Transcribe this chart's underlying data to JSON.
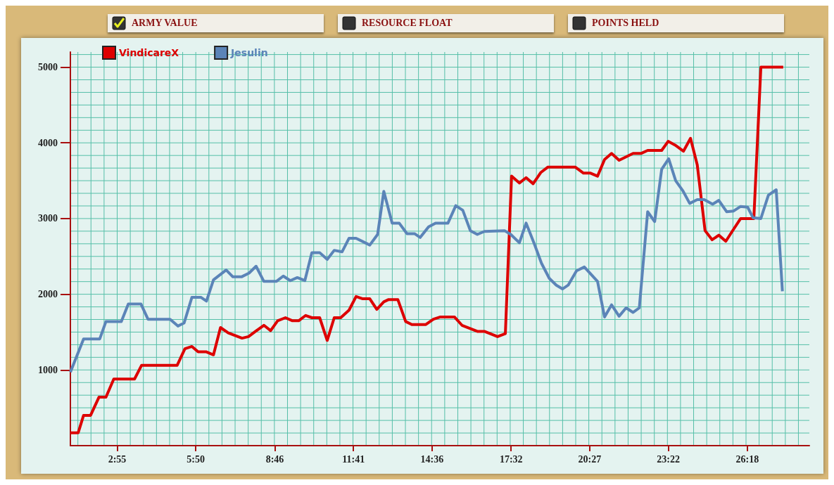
{
  "chart_data": {
    "type": "line",
    "title": "ARMY VALUE",
    "annotations": [
      "RESOURCE FLOAT",
      "POINTS HELD"
    ],
    "xlim": [
      1.18,
      28.6
    ],
    "xticks": [
      {
        "value": 2.9167,
        "label": "2:55"
      },
      {
        "value": 5.8333,
        "label": "5:50"
      },
      {
        "value": 8.7667,
        "label": "8:46"
      },
      {
        "value": 11.6833,
        "label": "11:41"
      },
      {
        "value": 14.6,
        "label": "14:36"
      },
      {
        "value": 17.5333,
        "label": "17:32"
      },
      {
        "value": 20.45,
        "label": "20:27"
      },
      {
        "value": 23.3667,
        "label": "23:22"
      },
      {
        "value": 26.3,
        "label": "26:18"
      }
    ],
    "ylim": [
      0,
      5200
    ],
    "yticks": [
      1000,
      2000,
      3000,
      4000,
      5000
    ],
    "grid": true,
    "legend": "top left",
    "marker": "none",
    "line_style": "solid",
    "series": [
      {
        "name": "VindicareX",
        "color": "#dd0000",
        "x": [
          1.18,
          1.47,
          1.67,
          1.93,
          2.24,
          2.5,
          2.79,
          3.56,
          3.82,
          5.14,
          5.43,
          5.69,
          5.92,
          6.21,
          6.49,
          6.75,
          7.04,
          7.55,
          7.79,
          8.05,
          8.36,
          8.61,
          8.87,
          9.16,
          9.42,
          9.65,
          9.91,
          10.14,
          10.43,
          10.71,
          10.97,
          11.21,
          11.52,
          11.78,
          12.03,
          12.29,
          12.55,
          12.81,
          12.99,
          13.33,
          13.62,
          13.85,
          14.37,
          14.65,
          14.91,
          15.43,
          15.71,
          16.28,
          16.54,
          17.03,
          17.32,
          17.55,
          17.84,
          18.09,
          18.35,
          18.64,
          18.9,
          19.91,
          20.22,
          20.48,
          20.74,
          21.0,
          21.26,
          21.54,
          22.06,
          22.35,
          22.6,
          23.12,
          23.36,
          23.62,
          23.93,
          24.19,
          24.44,
          24.73,
          24.99,
          25.24,
          25.5,
          25.79,
          26.05,
          26.54,
          26.8,
          27.63
        ],
        "values": [
          170,
          170,
          400,
          400,
          640,
          640,
          880,
          880,
          1060,
          1060,
          1280,
          1310,
          1240,
          1240,
          1200,
          1560,
          1490,
          1420,
          1440,
          1510,
          1590,
          1520,
          1650,
          1690,
          1650,
          1650,
          1720,
          1690,
          1690,
          1390,
          1690,
          1690,
          1790,
          1970,
          1940,
          1940,
          1800,
          1900,
          1930,
          1930,
          1640,
          1600,
          1600,
          1670,
          1700,
          1700,
          1590,
          1510,
          1510,
          1440,
          1480,
          3560,
          3470,
          3540,
          3460,
          3610,
          3680,
          3680,
          3600,
          3600,
          3560,
          3780,
          3860,
          3770,
          3860,
          3860,
          3900,
          3900,
          4020,
          3970,
          3890,
          4060,
          3710,
          2840,
          2720,
          2780,
          2700,
          2860,
          3000,
          3000,
          5000,
          5000
        ]
      },
      {
        "name": "Jesulin",
        "color": "#5b84b8",
        "x": [
          1.18,
          1.67,
          2.27,
          2.5,
          3.07,
          3.33,
          3.8,
          4.06,
          4.88,
          5.17,
          5.4,
          5.69,
          6.02,
          6.23,
          6.49,
          6.96,
          7.21,
          7.53,
          7.81,
          8.07,
          8.36,
          8.82,
          9.08,
          9.34,
          9.6,
          9.88,
          10.14,
          10.43,
          10.71,
          10.97,
          11.26,
          11.52,
          11.78,
          12.29,
          12.58,
          12.81,
          13.12,
          13.38,
          13.67,
          13.95,
          14.16,
          14.47,
          14.73,
          15.19,
          15.48,
          15.74,
          16.02,
          16.28,
          16.54,
          17.29,
          17.52,
          17.84,
          18.09,
          18.4,
          18.66,
          18.95,
          19.21,
          19.44,
          19.65,
          19.96,
          20.25,
          20.74,
          21.0,
          21.26,
          21.54,
          21.8,
          22.06,
          22.29,
          22.6,
          22.86,
          23.12,
          23.38,
          23.64,
          23.9,
          24.16,
          24.44,
          24.7,
          25.01,
          25.24,
          25.53,
          25.79,
          26.05,
          26.31,
          26.51,
          26.8,
          27.08,
          27.37,
          27.6
        ],
        "values": [
          970,
          1410,
          1410,
          1640,
          1640,
          1870,
          1870,
          1670,
          1670,
          1580,
          1620,
          1960,
          1960,
          1910,
          2190,
          2320,
          2230,
          2230,
          2280,
          2370,
          2170,
          2170,
          2240,
          2180,
          2220,
          2180,
          2550,
          2550,
          2460,
          2580,
          2560,
          2740,
          2740,
          2650,
          2790,
          3360,
          2940,
          2940,
          2800,
          2800,
          2750,
          2890,
          2940,
          2940,
          3170,
          3110,
          2840,
          2790,
          2830,
          2840,
          2790,
          2680,
          2940,
          2660,
          2410,
          2210,
          2120,
          2070,
          2120,
          2310,
          2360,
          2170,
          1700,
          1860,
          1710,
          1820,
          1760,
          1820,
          3090,
          2960,
          3650,
          3790,
          3500,
          3370,
          3200,
          3250,
          3250,
          3190,
          3240,
          3090,
          3100,
          3160,
          3150,
          3010,
          3000,
          3310,
          3380,
          2040
        ]
      }
    ]
  }
}
